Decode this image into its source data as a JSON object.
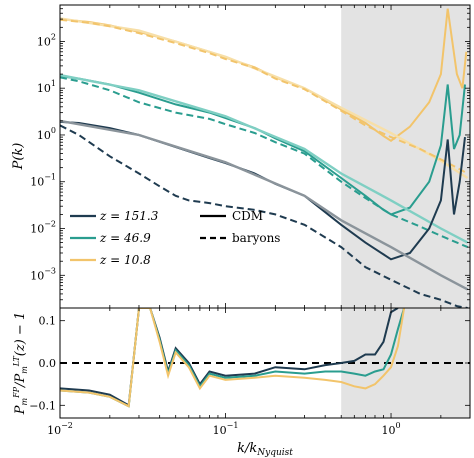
{
  "chart_data": [
    {
      "type": "line",
      "panel": "top",
      "ylabel": "P(k)",
      "xlabel": "",
      "xscale": "log",
      "yscale": "log",
      "xlim": [
        0.01,
        3.0
      ],
      "ylim": [
        0.0002,
        600
      ],
      "x_ticks": [
        "10^-2",
        "10^-1",
        "10^0"
      ],
      "y_ticks": [
        "10^-3",
        "10^-2",
        "10^-1",
        "10^0",
        "10^1",
        "10^2"
      ],
      "shaded_region": {
        "x_from": 0.5,
        "x_to": 3.0
      },
      "legend": {
        "placement": "lower-left",
        "entries": [
          {
            "label": "z = 151.3",
            "kind": "color",
            "color": "#1f3b50"
          },
          {
            "label": "z = 46.9",
            "kind": "color",
            "color": "#2a9d8f"
          },
          {
            "label": "z = 10.8",
            "kind": "color",
            "color": "#f2c46b"
          },
          {
            "label": "CDM",
            "kind": "style",
            "dash": "solid"
          },
          {
            "label": "baryons",
            "kind": "style",
            "dash": "dashed"
          }
        ]
      },
      "series": [
        {
          "name": "z = 10.8",
          "style": "CDM",
          "color": "#f2c46b",
          "x": [
            0.01,
            0.015,
            0.02,
            0.03,
            0.05,
            0.08,
            0.1,
            0.15,
            0.2,
            0.3,
            0.5,
            0.7,
            0.9,
            1.0,
            1.3,
            1.7,
            2.0,
            2.2,
            2.5,
            2.7,
            2.85
          ],
          "y": [
            300,
            260,
            220,
            160,
            100,
            60,
            45,
            28,
            17,
            10,
            3.5,
            1.8,
            0.95,
            0.75,
            1.5,
            5,
            20,
            500,
            20,
            10,
            60
          ]
        },
        {
          "name": "z = 10.8 lt",
          "style": "reference",
          "color": "#f7dfa8",
          "x": [
            0.01,
            0.03,
            0.1,
            0.3,
            0.5,
            1.0,
            2.0,
            2.9
          ],
          "y": [
            310,
            170,
            47,
            10,
            3.8,
            1.1,
            0.28,
            0.12
          ]
        },
        {
          "name": "z = 10.8",
          "style": "baryons",
          "color": "#f2c46b",
          "x": [
            0.01,
            0.015,
            0.02,
            0.03,
            0.05,
            0.08,
            0.1,
            0.15,
            0.2,
            0.3,
            0.5,
            0.7,
            1.0,
            1.5,
            2.0,
            2.5,
            2.9
          ],
          "y": [
            290,
            250,
            210,
            150,
            92,
            56,
            42,
            27,
            16,
            9.5,
            3.3,
            1.6,
            0.9,
            0.5,
            0.3,
            0.2,
            0.15
          ]
        },
        {
          "name": "z = 46.9",
          "style": "CDM",
          "color": "#2a9d8f",
          "x": [
            0.01,
            0.013,
            0.02,
            0.03,
            0.05,
            0.08,
            0.1,
            0.15,
            0.2,
            0.3,
            0.5,
            0.7,
            0.9,
            1.0,
            1.3,
            1.7,
            2.0,
            2.2,
            2.4,
            2.6,
            2.8
          ],
          "y": [
            18,
            16,
            12,
            8,
            4.5,
            3,
            2.3,
            1.4,
            0.85,
            0.45,
            0.12,
            0.05,
            0.025,
            0.02,
            0.028,
            0.1,
            0.6,
            12,
            0.5,
            1,
            12
          ]
        },
        {
          "name": "z = 46.9 lt",
          "style": "reference",
          "color": "#7fcfc3",
          "x": [
            0.01,
            0.03,
            0.1,
            0.3,
            0.5,
            1.0,
            2.0,
            2.9
          ],
          "y": [
            19,
            9,
            2.5,
            0.5,
            0.15,
            0.04,
            0.01,
            0.005
          ]
        },
        {
          "name": "z = 46.9",
          "style": "baryons",
          "color": "#2a9d8f",
          "x": [
            0.01,
            0.013,
            0.02,
            0.03,
            0.05,
            0.08,
            0.1,
            0.15,
            0.2,
            0.3,
            0.5,
            0.7,
            1.0,
            1.5,
            2.0,
            2.5,
            2.9
          ],
          "y": [
            17,
            14,
            9,
            5,
            3,
            2.2,
            1.7,
            1.1,
            0.7,
            0.4,
            0.1,
            0.045,
            0.02,
            0.011,
            0.007,
            0.005,
            0.004
          ]
        },
        {
          "name": "z = 151.3",
          "style": "CDM",
          "color": "#1f3b50",
          "x": [
            0.01,
            0.013,
            0.02,
            0.03,
            0.05,
            0.08,
            0.1,
            0.15,
            0.2,
            0.3,
            0.5,
            0.7,
            0.9,
            1.0,
            1.3,
            1.7,
            2.0,
            2.2,
            2.4,
            2.6,
            2.8
          ],
          "y": [
            1.9,
            1.8,
            1.4,
            1.0,
            0.55,
            0.32,
            0.25,
            0.15,
            0.09,
            0.05,
            0.012,
            0.005,
            0.0028,
            0.0022,
            0.003,
            0.01,
            0.04,
            0.8,
            0.02,
            0.1,
            0.9
          ]
        },
        {
          "name": "z = 151.3 lt",
          "style": "reference",
          "color": "#8b949b",
          "x": [
            0.01,
            0.03,
            0.1,
            0.3,
            0.5,
            1.0,
            2.0,
            2.9
          ],
          "y": [
            2.0,
            1.0,
            0.26,
            0.05,
            0.015,
            0.004,
            0.001,
            0.0005
          ]
        },
        {
          "name": "z = 151.3",
          "style": "baryons",
          "color": "#1f3b50",
          "x": [
            0.01,
            0.013,
            0.02,
            0.03,
            0.04,
            0.05,
            0.06,
            0.08,
            0.1,
            0.15,
            0.2,
            0.3,
            0.5,
            0.7,
            1.0,
            1.5,
            2.0,
            2.5,
            2.9
          ],
          "y": [
            1.6,
            1.0,
            0.35,
            0.15,
            0.08,
            0.05,
            0.04,
            0.035,
            0.03,
            0.025,
            0.02,
            0.012,
            0.004,
            0.0015,
            0.0008,
            0.0004,
            0.0003,
            0.00022,
            0.0002
          ]
        }
      ]
    },
    {
      "type": "line",
      "panel": "bottom",
      "ylabel": "P_m^FP / P_m^LT(z) − 1",
      "xlabel": "k / k_Nyquist",
      "xscale": "log",
      "xlim": [
        0.01,
        3.0
      ],
      "ylim": [
        -0.13,
        0.13
      ],
      "x_ticks": [
        "10^-2",
        "10^-1",
        "10^0"
      ],
      "y_ticks": [
        "-0.1",
        "0.0",
        "0.1"
      ],
      "shaded_region": {
        "x_from": 0.5,
        "x_to": 3.0
      },
      "reference_line": {
        "y": 0.0,
        "style": "dashed",
        "color": "#000000"
      },
      "series": [
        {
          "name": "z = 151.3",
          "color": "#1f3b50",
          "x": [
            0.01,
            0.015,
            0.02,
            0.026,
            0.03,
            0.035,
            0.04,
            0.045,
            0.05,
            0.06,
            0.07,
            0.08,
            0.1,
            0.15,
            0.2,
            0.3,
            0.4,
            0.5,
            0.6,
            0.7,
            0.8,
            0.9,
            1.0,
            1.1
          ],
          "y": [
            -0.06,
            -0.065,
            -0.075,
            -0.1,
            0.13,
            0.13,
            0.06,
            -0.02,
            0.035,
            0.0,
            -0.05,
            -0.02,
            -0.03,
            -0.025,
            -0.01,
            -0.015,
            -0.005,
            0.0,
            0.005,
            0.02,
            0.02,
            0.05,
            0.12,
            0.13
          ]
        },
        {
          "name": "z = 46.9",
          "color": "#2a9d8f",
          "x": [
            0.01,
            0.015,
            0.02,
            0.026,
            0.03,
            0.035,
            0.04,
            0.045,
            0.05,
            0.06,
            0.07,
            0.08,
            0.1,
            0.15,
            0.2,
            0.3,
            0.4,
            0.5,
            0.6,
            0.7,
            0.8,
            0.9,
            1.0,
            1.1,
            1.2
          ],
          "y": [
            -0.065,
            -0.07,
            -0.08,
            -0.102,
            0.13,
            0.13,
            0.055,
            -0.025,
            0.03,
            -0.005,
            -0.055,
            -0.025,
            -0.035,
            -0.03,
            -0.02,
            -0.025,
            -0.02,
            -0.02,
            -0.025,
            -0.03,
            -0.02,
            -0.015,
            0.02,
            0.08,
            0.13
          ]
        },
        {
          "name": "z = 10.8",
          "color": "#f2c46b",
          "x": [
            0.01,
            0.015,
            0.02,
            0.026,
            0.03,
            0.035,
            0.04,
            0.045,
            0.05,
            0.06,
            0.07,
            0.08,
            0.1,
            0.15,
            0.2,
            0.3,
            0.4,
            0.5,
            0.6,
            0.7,
            0.8,
            0.9,
            1.0,
            1.1,
            1.2
          ],
          "y": [
            -0.065,
            -0.07,
            -0.08,
            -0.102,
            0.13,
            0.13,
            0.05,
            -0.03,
            0.025,
            -0.01,
            -0.06,
            -0.03,
            -0.04,
            -0.035,
            -0.03,
            -0.035,
            -0.04,
            -0.045,
            -0.055,
            -0.06,
            -0.05,
            -0.03,
            -0.01,
            0.04,
            0.13
          ]
        }
      ]
    }
  ]
}
